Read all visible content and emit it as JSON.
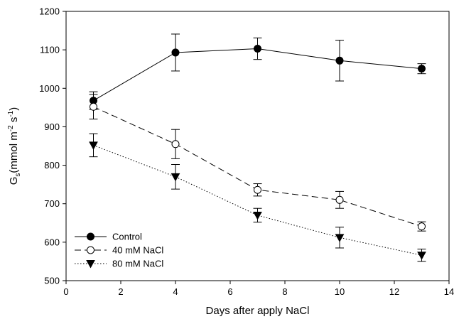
{
  "chart_data": {
    "type": "line",
    "xlabel": "Days after apply NaCl",
    "ylabel": {
      "base": "G",
      "sub": "s",
      "unit_prefix": "(mmol m",
      "sup1": "-2",
      "unit_mid": " s",
      "sup2": "-1",
      "unit_suffix": ")"
    },
    "xlim": [
      0,
      14
    ],
    "ylim": [
      500,
      1200
    ],
    "xticks": [
      0,
      2,
      4,
      6,
      8,
      10,
      12,
      14
    ],
    "yticks": [
      500,
      600,
      700,
      800,
      900,
      1000,
      1100,
      1200
    ],
    "grid": false,
    "legend_position": "bottom-left",
    "series": [
      {
        "name": "Control",
        "marker": "filled-circle",
        "line_style": "solid",
        "x": [
          1,
          4,
          7,
          10,
          13
        ],
        "y": [
          968,
          1093,
          1103,
          1072,
          1051
        ],
        "err": [
          23,
          48,
          28,
          53,
          13
        ]
      },
      {
        "name": "40 mM NaCl",
        "marker": "open-circle",
        "line_style": "dashed",
        "x": [
          1,
          4,
          7,
          10,
          13
        ],
        "y": [
          952,
          855,
          736,
          710,
          641
        ],
        "err": [
          32,
          38,
          16,
          22,
          12
        ]
      },
      {
        "name": "80 mM NaCl",
        "marker": "filled-triangle-down",
        "line_style": "dotted",
        "x": [
          1,
          4,
          7,
          10,
          13
        ],
        "y": [
          852,
          770,
          670,
          612,
          566
        ],
        "err": [
          30,
          32,
          18,
          27,
          16
        ]
      }
    ]
  }
}
